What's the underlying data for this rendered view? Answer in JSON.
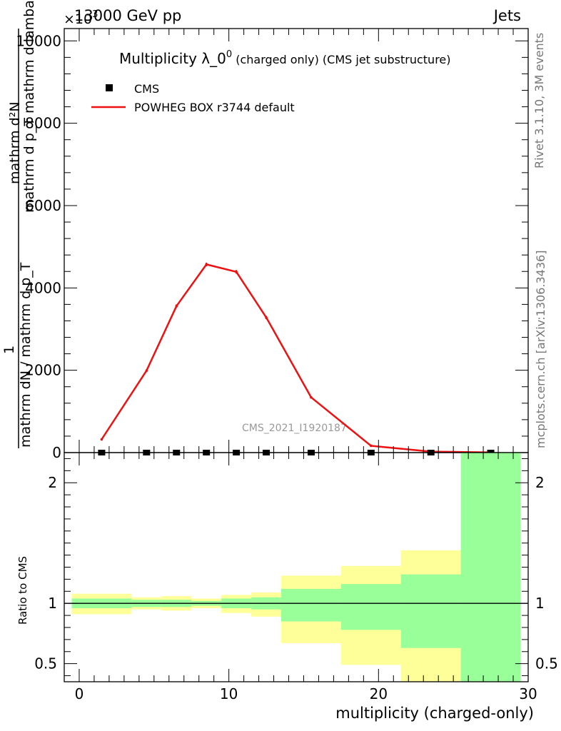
{
  "header": {
    "energy": "13000 GeV pp",
    "category": "Jets",
    "multiplier": "×10",
    "multiplier_exp": "3"
  },
  "side_labels": {
    "rivet": "Rivet 3.1.10,  3M events",
    "mcplots": "mcplots.cern.ch [arXiv:1306.3436]"
  },
  "watermark": "CMS_2021_I1920187",
  "chart_data": [
    {
      "type": "line",
      "title": {
        "main": "Multiplicity λ_0",
        "sup": "0",
        "suffix": " (charged only) (CMS jet substructure)"
      },
      "ylabel": {
        "numerator": "mathrm d²N",
        "numerator_long": "mathrm d p_T mathrm d lamba",
        "denominator": "mathrm dN / mathrm d p_T",
        "one": "1",
        "full": "1 / (mathrm dN / mathrm d p_T) · mathrm d²N / (mathrm d p_T mathrm d lamba)"
      },
      "xlim": [
        -1,
        30
      ],
      "ylim": [
        0,
        10300
      ],
      "yticks": [
        0,
        2000,
        4000,
        6000,
        8000,
        10000
      ],
      "ytick_labels": [
        "0",
        "2000",
        "4000",
        "6000",
        "8000",
        "10000"
      ],
      "legend_position": "top-left",
      "legend": [
        {
          "name": "CMS",
          "marker": "square",
          "color": "#000000"
        },
        {
          "name": "POWHEG BOX r3744 default",
          "marker": "line",
          "color": "#ee1111"
        }
      ],
      "series": [
        {
          "name": "POWHEG BOX r3744 default",
          "color": "#ee1111",
          "x": [
            1.5,
            4.5,
            6.5,
            8.5,
            10.5,
            12.5,
            15.5,
            19.5,
            23.5,
            27.5
          ],
          "y": [
            320,
            1990,
            3560,
            4570,
            4390,
            3280,
            1340,
            165,
            25,
            5
          ],
          "yerr": [
            15,
            30,
            40,
            45,
            45,
            40,
            30,
            10,
            5,
            2
          ]
        },
        {
          "name": "CMS",
          "color": "#000000",
          "x": [
            1.5,
            4.5,
            6.5,
            8.5,
            10.5,
            12.5,
            15.5,
            19.5,
            23.5,
            27.5
          ],
          "y": [
            0,
            0,
            0,
            0,
            0,
            0,
            0,
            0,
            0,
            0
          ]
        }
      ]
    },
    {
      "type": "area",
      "ylabel": "Ratio to CMS",
      "xlabel": "multiplicity (charged-only)",
      "xlim": [
        -1,
        30
      ],
      "ylim": [
        0.35,
        2.25
      ],
      "xticks": [
        0,
        10,
        20,
        30
      ],
      "xtick_labels": [
        "0",
        "10",
        "20",
        "30"
      ],
      "yticks": [
        0.5,
        1,
        2
      ],
      "ytick_labels": [
        "0.5",
        "1",
        "2"
      ],
      "reference_line": 1,
      "bins": [
        {
          "lo": -0.5,
          "hi": 3.5,
          "inner": [
            0.96,
            1.04
          ],
          "outer": [
            0.91,
            1.08
          ]
        },
        {
          "lo": 3.5,
          "hi": 5.5,
          "inner": [
            0.97,
            1.03
          ],
          "outer": [
            0.95,
            1.05
          ]
        },
        {
          "lo": 5.5,
          "hi": 7.5,
          "inner": [
            0.97,
            1.03
          ],
          "outer": [
            0.94,
            1.06
          ]
        },
        {
          "lo": 7.5,
          "hi": 9.5,
          "inner": [
            0.98,
            1.02
          ],
          "outer": [
            0.96,
            1.04
          ]
        },
        {
          "lo": 9.5,
          "hi": 11.5,
          "inner": [
            0.96,
            1.04
          ],
          "outer": [
            0.92,
            1.07
          ]
        },
        {
          "lo": 11.5,
          "hi": 13.5,
          "inner": [
            0.95,
            1.05
          ],
          "outer": [
            0.89,
            1.09
          ]
        },
        {
          "lo": 13.5,
          "hi": 17.5,
          "inner": [
            0.85,
            1.12
          ],
          "outer": [
            0.67,
            1.23
          ]
        },
        {
          "lo": 17.5,
          "hi": 21.5,
          "inner": [
            0.78,
            1.16
          ],
          "outer": [
            0.49,
            1.31
          ]
        },
        {
          "lo": 21.5,
          "hi": 25.5,
          "inner": [
            0.63,
            1.24
          ],
          "outer": [
            0.35,
            1.44
          ]
        },
        {
          "lo": 25.5,
          "hi": 29.5,
          "inner": [
            0.35,
            2.25
          ],
          "outer": [
            0.35,
            2.25
          ]
        }
      ],
      "band_colors": {
        "inner": "#99ff99",
        "outer": "#ffff99"
      }
    }
  ]
}
